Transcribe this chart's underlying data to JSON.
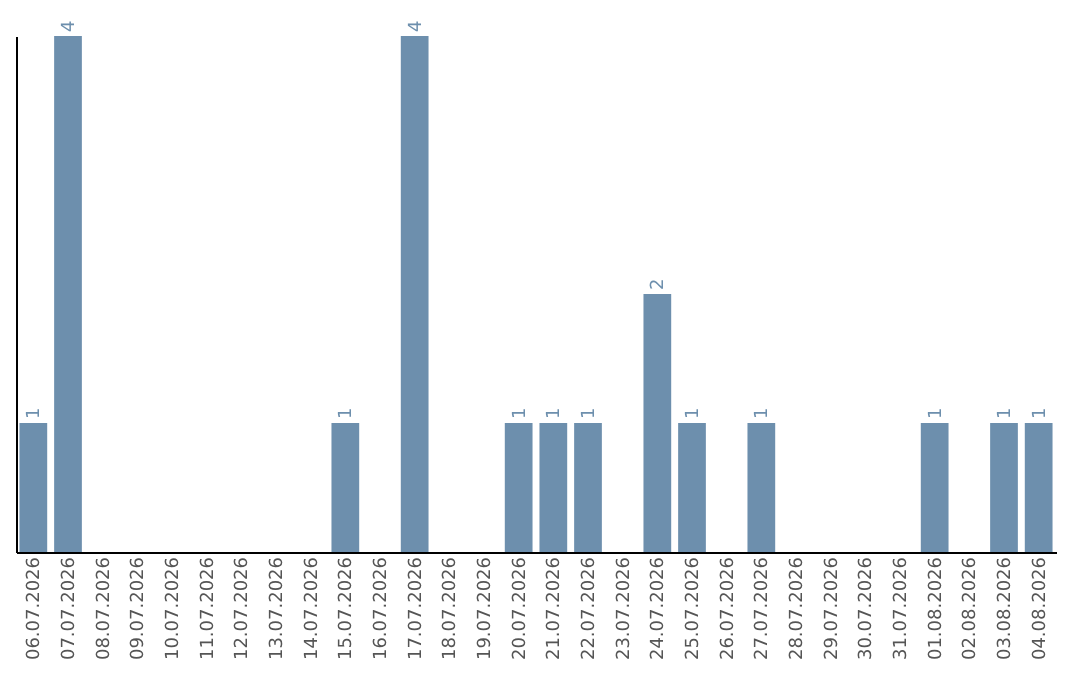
{
  "chart_data": {
    "type": "bar",
    "categories": [
      "06.07.2026",
      "07.07.2026",
      "08.07.2026",
      "09.07.2026",
      "10.07.2026",
      "11.07.2026",
      "12.07.2026",
      "13.07.2026",
      "14.07.2026",
      "15.07.2026",
      "16.07.2026",
      "17.07.2026",
      "18.07.2026",
      "19.07.2026",
      "20.07.2026",
      "21.07.2026",
      "22.07.2026",
      "23.07.2026",
      "24.07.2026",
      "25.07.2026",
      "26.07.2026",
      "27.07.2026",
      "28.07.2026",
      "29.07.2026",
      "30.07.2026",
      "31.07.2026",
      "01.08.2026",
      "02.08.2026",
      "03.08.2026",
      "04.08.2026"
    ],
    "values": [
      1,
      4,
      0,
      0,
      0,
      0,
      0,
      0,
      0,
      1,
      0,
      4,
      0,
      0,
      1,
      1,
      1,
      0,
      2,
      1,
      0,
      1,
      0,
      0,
      0,
      0,
      1,
      0,
      1,
      1
    ],
    "value_labels": [
      "1",
      "4",
      null,
      null,
      null,
      null,
      null,
      null,
      null,
      "1",
      null,
      "4",
      null,
      null,
      "1",
      "1",
      "1",
      null,
      "2",
      "1",
      null,
      "1",
      null,
      null,
      null,
      null,
      "1",
      null,
      "1",
      "1"
    ],
    "color": "#6d8fad",
    "ylim": [
      0,
      4
    ],
    "tick_labels": "x",
    "grid": false
  }
}
